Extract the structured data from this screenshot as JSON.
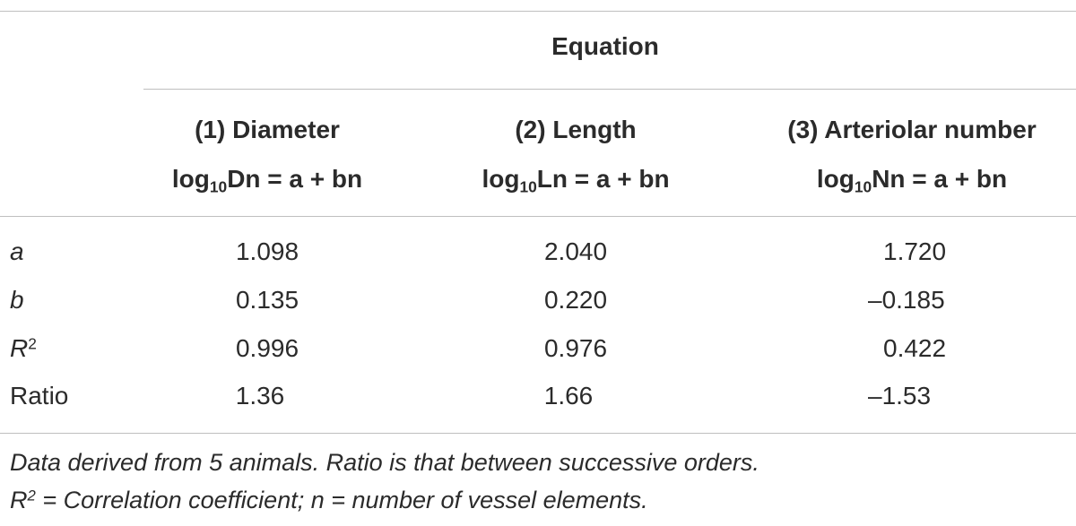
{
  "header": {
    "group_label": "Equation",
    "columns": [
      {
        "title": "(1) Diameter",
        "eq_prefix": "log",
        "eq_sub": "10",
        "eq_rest": "Dn = a + bn"
      },
      {
        "title": "(2) Length",
        "eq_prefix": "log",
        "eq_sub": "10",
        "eq_rest": "Ln = a + bn"
      },
      {
        "title": "(3) Arteriolar number",
        "eq_prefix": "log",
        "eq_sub": "10",
        "eq_rest": "Nn = a + bn"
      }
    ]
  },
  "rows": [
    {
      "label": "a",
      "label_sup": "",
      "values": [
        "1.098",
        "2.040",
        "1.720"
      ]
    },
    {
      "label": "b",
      "label_sup": "",
      "values": [
        "0.135",
        "0.220",
        "–0.185"
      ]
    },
    {
      "label": "R",
      "label_sup": "2",
      "values": [
        "0.996",
        "0.976",
        "0.422"
      ]
    },
    {
      "label": "Ratio",
      "label_sup": "",
      "values": [
        "1.36",
        "1.66",
        "–1.53"
      ]
    }
  ],
  "footnote": {
    "line1": "Data derived from 5 animals. Ratio is that between successive orders.",
    "line2_prefix": "R",
    "line2_sup": "2",
    "line2_rest": " = Correlation coefficient; n = number of vessel elements."
  }
}
